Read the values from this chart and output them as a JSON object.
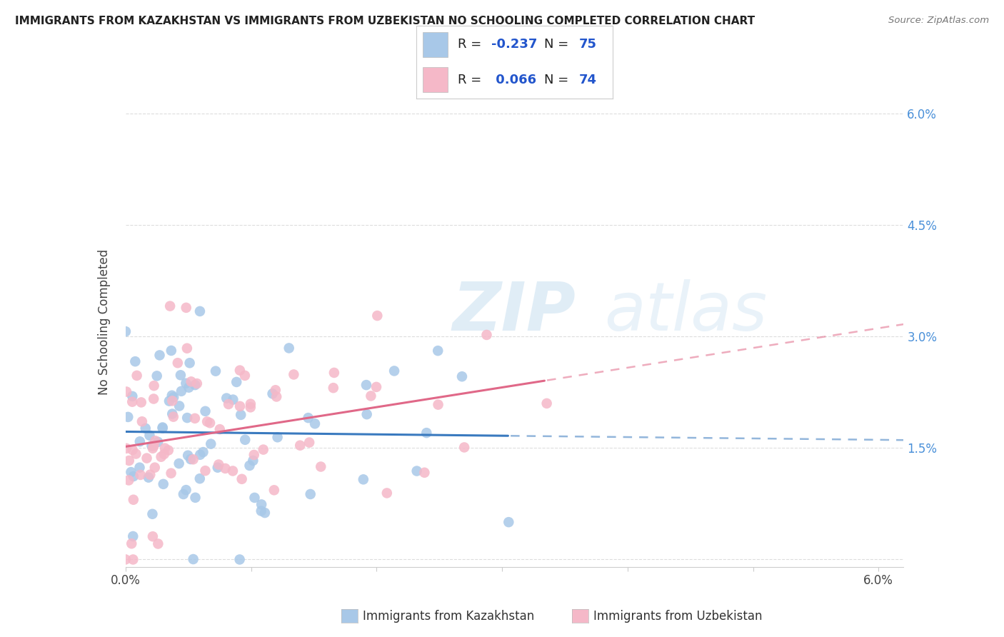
{
  "title": "IMMIGRANTS FROM KAZAKHSTAN VS IMMIGRANTS FROM UZBEKISTAN NO SCHOOLING COMPLETED CORRELATION CHART",
  "source": "Source: ZipAtlas.com",
  "ylabel": "No Schooling Completed",
  "xlim": [
    0.0,
    0.062
  ],
  "ylim": [
    -0.001,
    0.065
  ],
  "xtick_vals": [
    0.0,
    0.01,
    0.02,
    0.03,
    0.04,
    0.05,
    0.06
  ],
  "xtick_labels": [
    "0.0%",
    "",
    "",
    "",
    "",
    "",
    "6.0%"
  ],
  "ytick_vals": [
    0.0,
    0.015,
    0.03,
    0.045,
    0.06
  ],
  "right_ytick_labels": [
    "",
    "1.5%",
    "3.0%",
    "4.5%",
    "6.0%"
  ],
  "kazakhstan_color": "#a8c8e8",
  "uzbekistan_color": "#f5b8c8",
  "kazakhstan_line_color": "#3a7abf",
  "uzbekistan_line_color": "#e06888",
  "R_kazakhstan": -0.237,
  "N_kazakhstan": 75,
  "R_uzbekistan": 0.066,
  "N_uzbekistan": 74,
  "watermark_zip": "ZIP",
  "watermark_atlas": "atlas",
  "background_color": "#ffffff",
  "grid_color": "#dddddd",
  "title_color": "#222222",
  "source_color": "#777777",
  "right_axis_color": "#4a90d9",
  "legend_text_color": "#222222",
  "legend_value_color": "#2255cc",
  "kaz_seed": 7,
  "uzb_seed": 13
}
